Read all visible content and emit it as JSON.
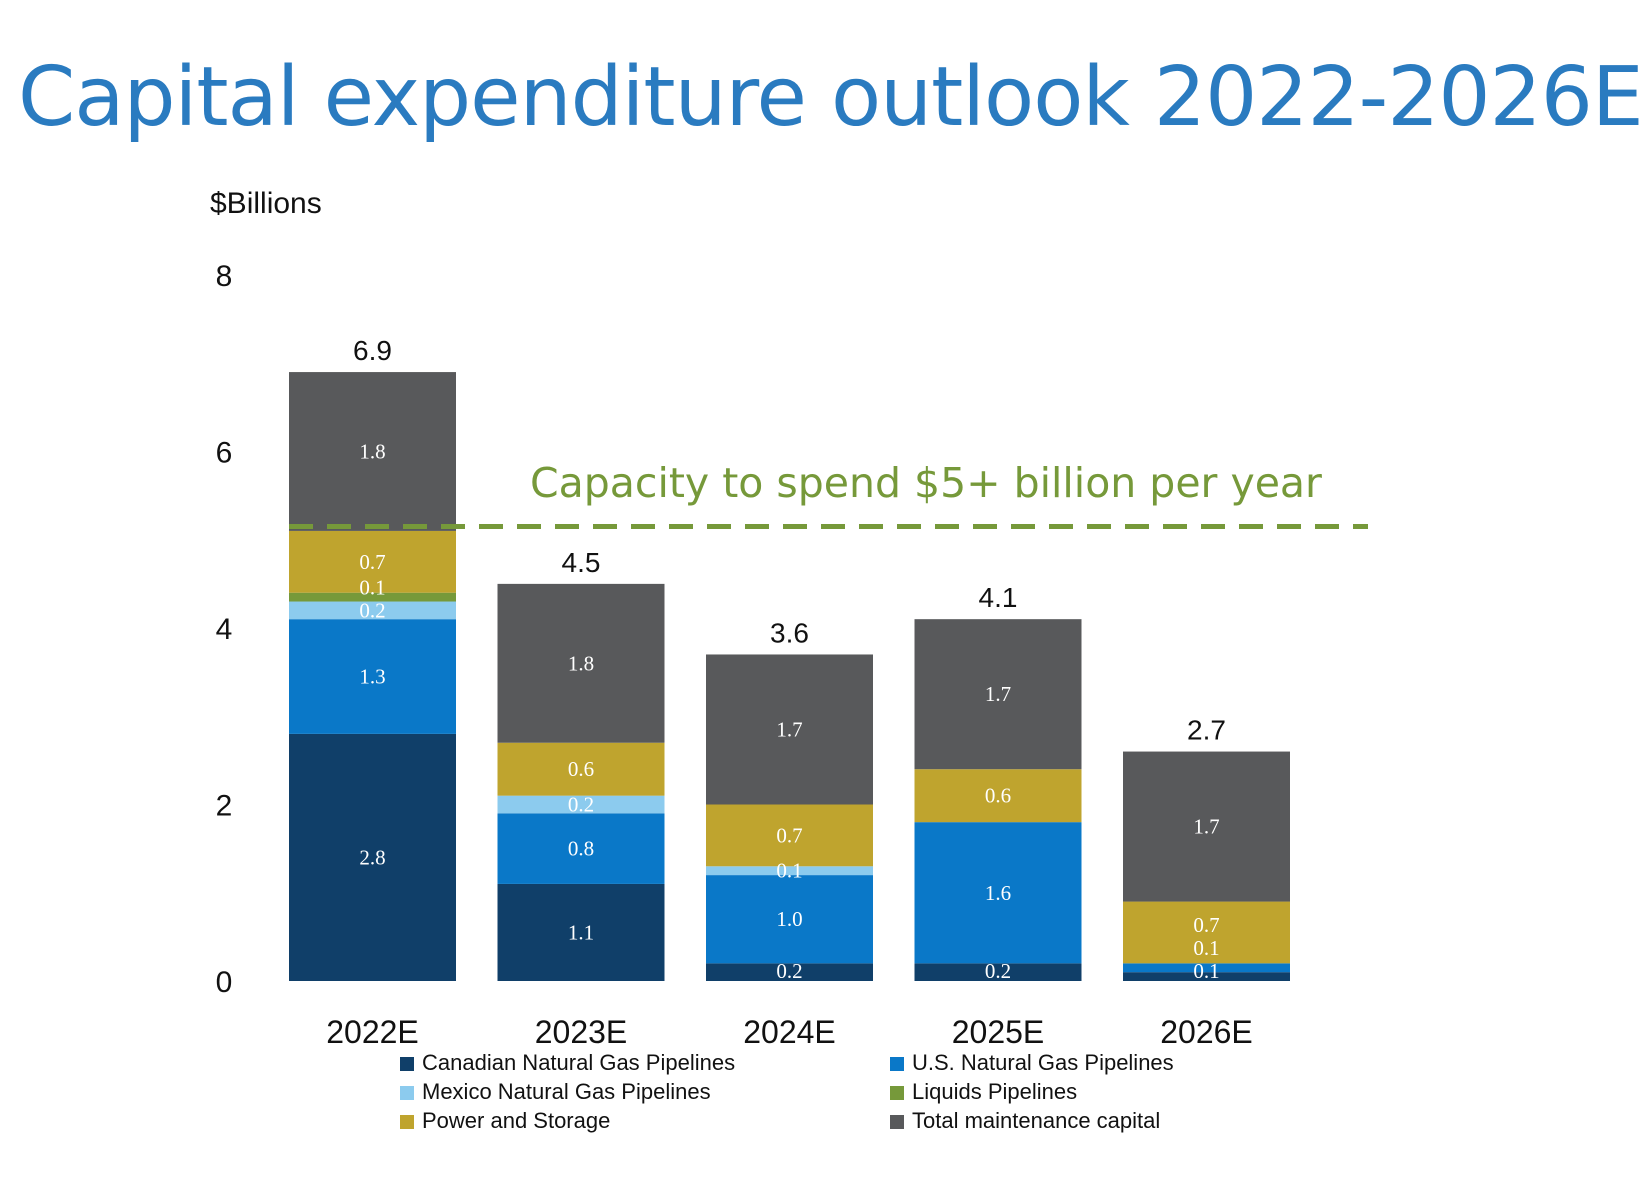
{
  "title": "Capital expenditure outlook 2022-2026E",
  "chart_data": {
    "type": "bar",
    "stacked": true,
    "ylabel": "$Billions",
    "ylim": [
      0,
      8
    ],
    "yticks": [
      0,
      2,
      4,
      6,
      8
    ],
    "grid": false,
    "legend_position": "bottom",
    "categories": [
      "2022E",
      "2023E",
      "2024E",
      "2025E",
      "2026E"
    ],
    "totals": [
      "6.9",
      "4.5",
      "3.6",
      "4.1",
      "2.7"
    ],
    "series": [
      {
        "name": "Canadian Natural Gas Pipelines",
        "color": "#103f69",
        "values": [
          2.8,
          1.1,
          0.2,
          0.2,
          0.1
        ]
      },
      {
        "name": "U.S. Natural Gas Pipelines",
        "color": "#0a78c8",
        "values": [
          1.3,
          0.8,
          1.0,
          1.6,
          0.1
        ]
      },
      {
        "name": "Mexico Natural Gas Pipelines",
        "color": "#8ccbee",
        "values": [
          0.2,
          0.2,
          0.1,
          0,
          0
        ]
      },
      {
        "name": "Liquids Pipelines",
        "color": "#76993a",
        "values": [
          0.1,
          0,
          0,
          0,
          0
        ]
      },
      {
        "name": "Power and Storage",
        "color": "#bfa42e",
        "values": [
          0.7,
          0.6,
          0.7,
          0.6,
          0.7
        ]
      },
      {
        "name": "Total maintenance capital",
        "color": "#58595b",
        "values": [
          1.8,
          1.8,
          1.7,
          1.7,
          1.7
        ]
      }
    ],
    "annotation": {
      "text": "Capacity to spend $5+ billion per year",
      "value": 5.15,
      "color": "#76993a",
      "style": "dashed"
    }
  }
}
